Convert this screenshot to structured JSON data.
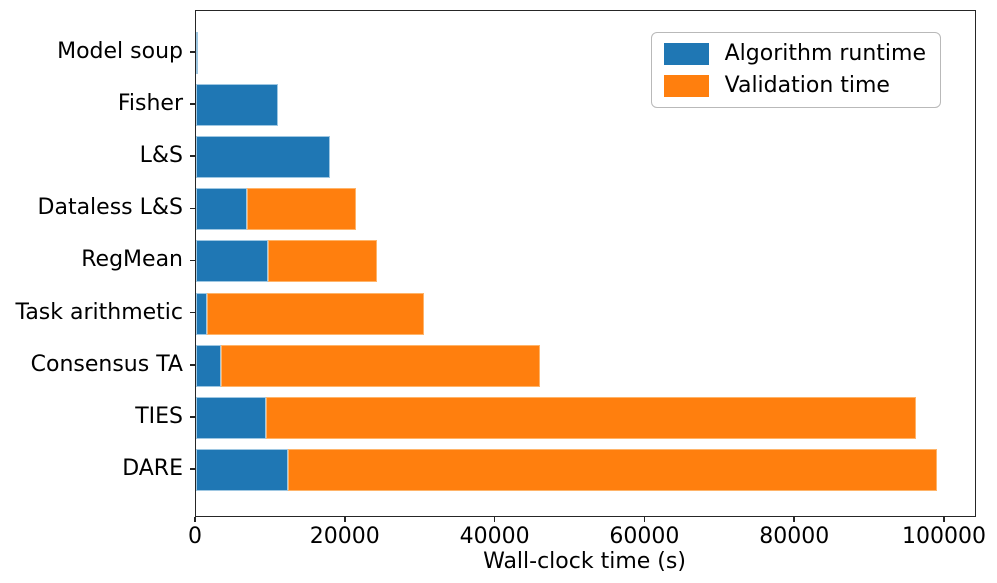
{
  "chart_data": {
    "type": "bar",
    "orientation": "horizontal",
    "stacked": true,
    "title": "",
    "xlabel": "Wall-clock time (s)",
    "ylabel": "",
    "xlim": [
      0,
      104000
    ],
    "xticks": [
      0,
      20000,
      40000,
      60000,
      80000,
      100000
    ],
    "xtick_labels": [
      "0",
      "20000",
      "40000",
      "60000",
      "80000",
      "100000"
    ],
    "grid": false,
    "legend_position": "upper right",
    "categories": [
      "Model soup",
      "Fisher",
      "L&S",
      "Dataless L&S",
      "RegMean",
      "Task arithmetic",
      "Consensus TA",
      "TIES",
      "DARE"
    ],
    "series": [
      {
        "name": "Algorithm runtime",
        "color": "#1f77b4",
        "values": [
          150,
          10900,
          17900,
          6800,
          9600,
          1500,
          3400,
          9400,
          12300
        ]
      },
      {
        "name": "Validation time",
        "color": "#ff7f0e",
        "values": [
          0,
          0,
          0,
          14500,
          14500,
          28900,
          42500,
          86700,
          86600
        ]
      }
    ],
    "totals": [
      150,
      10900,
      17900,
      21300,
      24100,
      30400,
      45900,
      96100,
      98900
    ]
  }
}
